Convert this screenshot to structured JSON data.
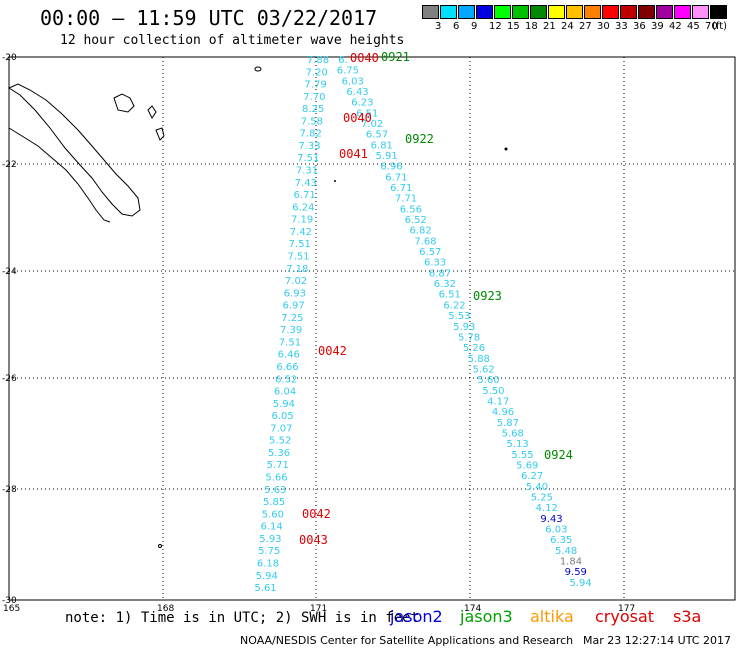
{
  "header": {
    "title": "00:00 – 11:59 UTC 03/22/2017",
    "subtitle": "12 hour collection of altimeter wave heights"
  },
  "scale": {
    "unit": "(ft)",
    "bins": [
      {
        "label": "3",
        "color": "#808080"
      },
      {
        "label": "6",
        "color": "#00e0ff"
      },
      {
        "label": "9",
        "color": "#00a8ff"
      },
      {
        "label": "12",
        "color": "#0000e0"
      },
      {
        "label": "15",
        "color": "#00ff00"
      },
      {
        "label": "18",
        "color": "#00c000"
      },
      {
        "label": "21",
        "color": "#008800"
      },
      {
        "label": "24",
        "color": "#ffff00"
      },
      {
        "label": "27",
        "color": "#ffc000"
      },
      {
        "label": "30",
        "color": "#ff8000"
      },
      {
        "label": "33",
        "color": "#ff0000"
      },
      {
        "label": "36",
        "color": "#c00000"
      },
      {
        "label": "39",
        "color": "#800000"
      },
      {
        "label": "42",
        "color": "#a000a0"
      },
      {
        "label": "45",
        "color": "#ff00ff"
      },
      {
        "label": "70",
        "color": "#ff90ff"
      },
      {
        "label": "",
        "color": "#000000"
      }
    ]
  },
  "axes": {
    "lat_labels": [
      "-20",
      "-22",
      "-24",
      "-26",
      "-28",
      "-30"
    ],
    "lon_labels": [
      "165",
      "168",
      "171",
      "174",
      "177"
    ]
  },
  "tracks": {
    "west": [
      "7.88",
      "7.20",
      "7.79",
      "7.70",
      "8.25",
      "7.58",
      "7.82",
      "7.33",
      "7.51",
      "7.31",
      "7.43",
      "6.71",
      "6.24",
      "7.19",
      "7.42",
      "7.51",
      "7.51",
      "7.18",
      "7.02",
      "6.93",
      "6.97",
      "7.25",
      "7.39",
      "7.51",
      "6.46",
      "6.66",
      "6.52",
      "6.04",
      "5.94",
      "6.05",
      "7.07",
      "5.52",
      "5.36",
      "5.71",
      "5.66",
      "5.63",
      "5.85",
      "5.60",
      "6.14",
      "5.93",
      "5.75",
      "6.18",
      "5.94",
      "5.61"
    ],
    "east": [
      "6.",
      "6.75",
      "6.03",
      "6.43",
      "6.23",
      "6.51",
      "7.02",
      "6.57",
      "6.81",
      "5.91",
      "6.96",
      "6.71",
      "6.71",
      "7.71",
      "6.56",
      "6.52",
      "6.82",
      "7.68",
      "6.57",
      "6.33",
      "6.87",
      "6.32",
      "6.51",
      "6.22",
      "5.53",
      "5.93",
      "5.78",
      "5.26",
      "5.88",
      "5.62",
      "5.60",
      "5.50",
      "4.17",
      "4.96",
      "5.87",
      "5.68",
      "5.13",
      "5.55",
      "5.69",
      "6.27",
      "5.40",
      "5.25",
      "4.12",
      "9.43",
      "6.03",
      "6.35",
      "5.48",
      "1.84",
      "9.59",
      "5.94"
    ]
  },
  "time_labels": [
    {
      "text": "0040",
      "series": "cryosat"
    },
    {
      "text": "0921",
      "series": "jason3"
    },
    {
      "text": "0040",
      "series": "cryosat"
    },
    {
      "text": "0922",
      "series": "jason3"
    },
    {
      "text": "0041",
      "series": "cryosat"
    },
    {
      "text": "0923",
      "series": "jason3"
    },
    {
      "text": "0042",
      "series": "cryosat"
    },
    {
      "text": "0924",
      "series": "jason3"
    },
    {
      "text": "0042",
      "series": "cryosat"
    },
    {
      "text": "0043",
      "series": "cryosat"
    }
  ],
  "note": "note: 1) Time is in UTC; 2) SWH is in feet",
  "legend": [
    {
      "name": "jason2",
      "color": "#0000e0"
    },
    {
      "name": "jason3",
      "color": "#00a000"
    },
    {
      "name": "altika",
      "color": "#ff9900"
    },
    {
      "name": "cryosat",
      "color": "#e00000"
    },
    {
      "name": "s3a",
      "color": "#e00000"
    }
  ],
  "footer": {
    "credit": "NOAA/NESDIS Center for Satellite Applications and Research",
    "timestamp": "Mar 23 12:27:14 UTC 2017"
  }
}
